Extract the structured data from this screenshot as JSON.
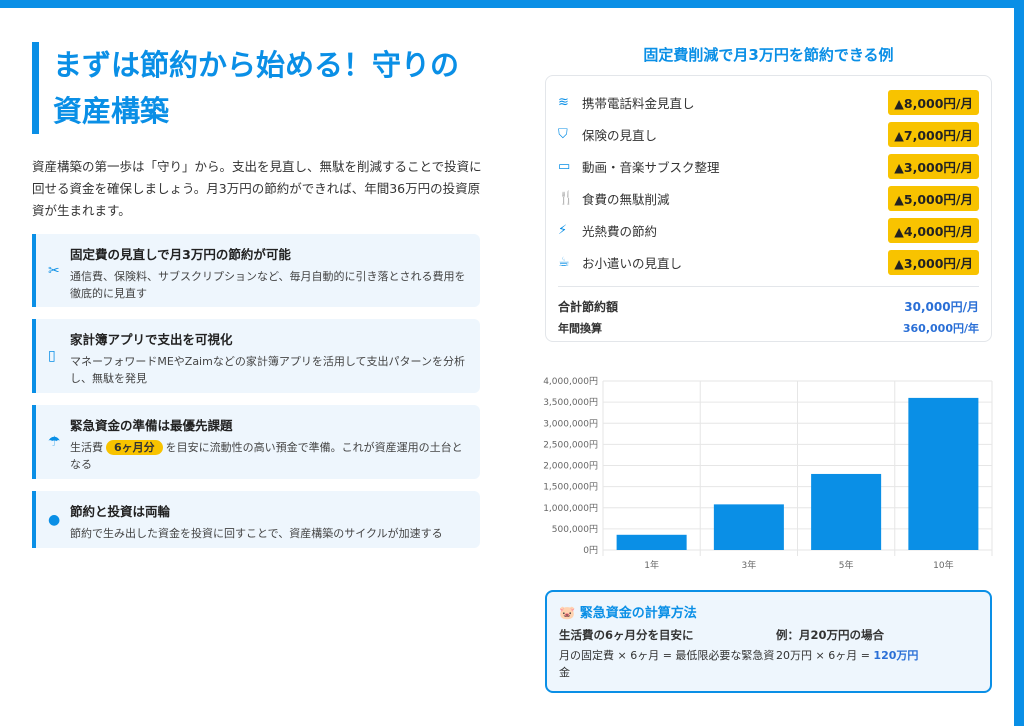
{
  "title": "まずは節約から始める！守りの資産構築",
  "intro": "資産構築の第一歩は「守り」から。支出を見直し、無駄を削減することで投資に回せる資金を確保しましょう。月3万円の節約ができれば、年間36万円の投資原資が生まれます。",
  "cards": [
    {
      "icon": "scissors-icon",
      "title": "固定費の見直しで月3万円の節約が可能",
      "text": "通信費、保険料、サブスクリプションなど、毎月自動的に引き落とされる費用を徹底的に見直す"
    },
    {
      "icon": "mobile-icon",
      "title": "家計簿アプリで支出を可視化",
      "text": "マネーフォワードMEやZaimなどの家計簿アプリを活用して支出パターンを分析し、無駄を発見"
    },
    {
      "icon": "umbrella-icon",
      "title": "緊急資金の準備は最優先課題",
      "text_pre": "生活費",
      "highlight": "6ヶ月分",
      "text_post": "を目安に流動性の高い預金で準備。これが資産運用の土台となる"
    },
    {
      "icon": "lightbulb-icon",
      "title": "節約と投資は両輪",
      "text": "節約で生み出した資金を投資に回すことで、資産構築のサイクルが加速する"
    }
  ],
  "savings": {
    "title": "固定費削減で月3万円を節約できる例",
    "items": [
      {
        "icon": "wifi-icon",
        "label": "携帯電話料金見直し",
        "amount": "▲8,000円/月"
      },
      {
        "icon": "shield-icon",
        "label": "保険の見直し",
        "amount": "▲7,000円/月"
      },
      {
        "icon": "tv-icon",
        "label": "動画・音楽サブスク整理",
        "amount": "▲3,000円/月"
      },
      {
        "icon": "utensils-icon",
        "label": "食費の無駄削減",
        "amount": "▲5,000円/月"
      },
      {
        "icon": "bolt-icon",
        "label": "光熱費の節約",
        "amount": "▲4,000円/月"
      },
      {
        "icon": "coffee-icon",
        "label": "お小遣いの見直し",
        "amount": "▲3,000円/月"
      }
    ],
    "total_label": "合計節約額",
    "total_value": "30,000円/月",
    "annual_label": "年間換算",
    "annual_value": "360,000円/年"
  },
  "chart_data": {
    "type": "bar",
    "categories": [
      "1年",
      "3年",
      "5年",
      "10年"
    ],
    "values": [
      360000,
      1080000,
      1800000,
      3600000
    ],
    "ylim": [
      0,
      4000000
    ],
    "yticks": [
      "0円",
      "500,000円",
      "1,000,000円",
      "1,500,000円",
      "2,000,000円",
      "2,500,000円",
      "3,000,000円",
      "3,500,000円",
      "4,000,000円"
    ],
    "grid": true,
    "color": "#0a8fe6"
  },
  "emergency": {
    "icon": "piggy-bank-icon",
    "title": "緊急資金の計算方法",
    "left_head": "生活費の6ヶ月分を目安に",
    "left_text": "月の固定費 × 6ヶ月 = 最低限必要な緊急資金",
    "right_head": "例：月20万円の場合",
    "right_text": "20万円 × 6ヶ月 = ",
    "right_value": "120万円"
  }
}
